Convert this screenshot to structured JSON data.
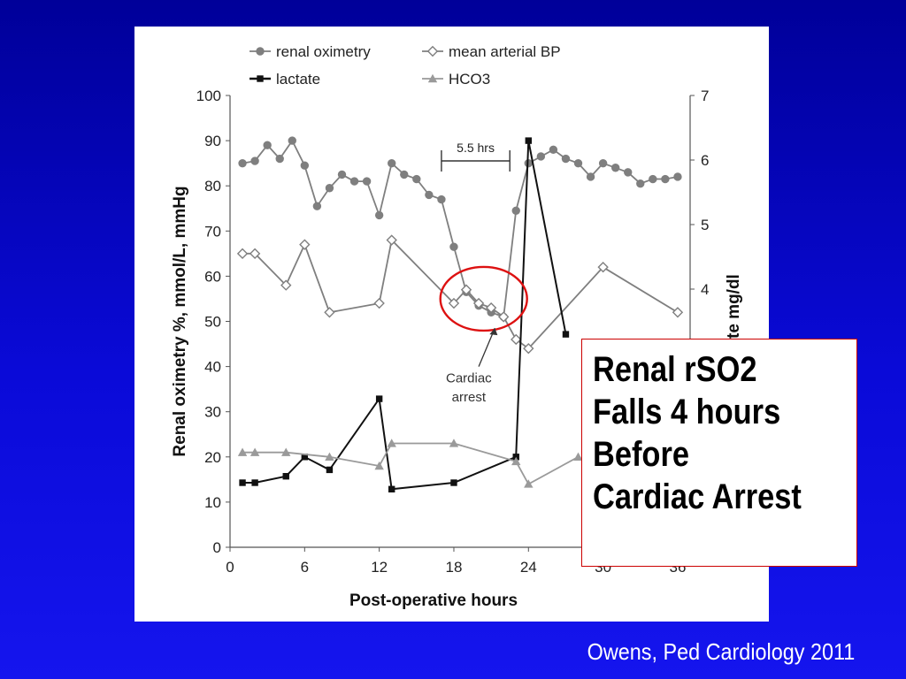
{
  "chart_data": {
    "type": "line",
    "xlabel": "Post-operative hours",
    "ylabel": "Renal oximetry %, mmol/L, mmHg",
    "y2label": "Lactate mg/dl",
    "y2label_visible": "te mg/dl",
    "xlim": [
      0,
      37
    ],
    "ylim": [
      0,
      100
    ],
    "y2lim": [
      0,
      7
    ],
    "xticks": [
      "0",
      "6",
      "12",
      "18",
      "24",
      "30",
      "36"
    ],
    "yticks": [
      "0",
      "10",
      "20",
      "30",
      "40",
      "50",
      "60",
      "70",
      "80",
      "90",
      "100"
    ],
    "y2ticks": [
      "4",
      "5",
      "6",
      "7"
    ],
    "grid": false,
    "legend_position": "top",
    "series": [
      {
        "name": "renal oximetry",
        "marker": "circle",
        "color": "#7f7f7f",
        "x": [
          1,
          2,
          3,
          4,
          5,
          6,
          7,
          8,
          9,
          10,
          11,
          12,
          13,
          14,
          15,
          16,
          17,
          18,
          19,
          20,
          21,
          22,
          23,
          24,
          25,
          26,
          27,
          28,
          29,
          30,
          31,
          32,
          33,
          34,
          35,
          36
        ],
        "y": [
          85,
          85.5,
          89,
          86,
          90,
          84.5,
          75.5,
          79.5,
          82.5,
          81,
          81,
          73.5,
          85,
          82.5,
          81.5,
          78,
          77,
          66.5,
          56.5,
          53.5,
          52,
          51,
          74.5,
          85,
          86.5,
          88,
          86,
          85,
          82,
          85,
          84,
          83,
          80.5,
          81.5,
          81.5,
          82
        ]
      },
      {
        "name": "mean arterial BP",
        "marker": "diamond",
        "color": "#7f7f7f",
        "x": [
          1,
          2,
          4.5,
          6,
          8,
          12,
          13,
          18,
          19,
          20,
          21,
          22,
          23,
          24,
          30,
          36
        ],
        "y": [
          65,
          65,
          58,
          67,
          52,
          54,
          68,
          54,
          57,
          54,
          53,
          51,
          46,
          44,
          62,
          52
        ]
      },
      {
        "name": "lactate",
        "marker": "square",
        "color": "#111111",
        "axis": "right",
        "x": [
          1,
          2,
          4.5,
          6,
          8,
          12,
          13,
          18,
          23,
          24,
          27
        ],
        "y": [
          1.0,
          1.0,
          1.1,
          1.4,
          1.2,
          2.3,
          0.9,
          1.0,
          1.4,
          6.3,
          3.3
        ]
      },
      {
        "name": "HCO3",
        "marker": "triangle",
        "color": "#9a9a9a",
        "x": [
          1,
          2,
          4.5,
          8,
          12,
          13,
          18,
          23,
          24,
          28
        ],
        "y": [
          21,
          21,
          21,
          20,
          18,
          23,
          23,
          19,
          14,
          20
        ]
      }
    ],
    "annotations": {
      "interval_label": "5.5 hrs",
      "interval_x": [
        17,
        22.5
      ],
      "event_label_line1": "Cardiac",
      "event_label_line2": "arrest",
      "highlight_color": "#dd1111"
    }
  },
  "callout": {
    "lines": [
      "Renal rSO2",
      "Falls 4 hours",
      "Before",
      "Cardiac Arrest"
    ],
    "border_color": "#cc0000"
  },
  "citation": "Owens, Ped Cardiology 2011",
  "colors": {
    "background_top": "#000099",
    "background_bottom": "#1515ee",
    "panel": "#ffffff"
  }
}
